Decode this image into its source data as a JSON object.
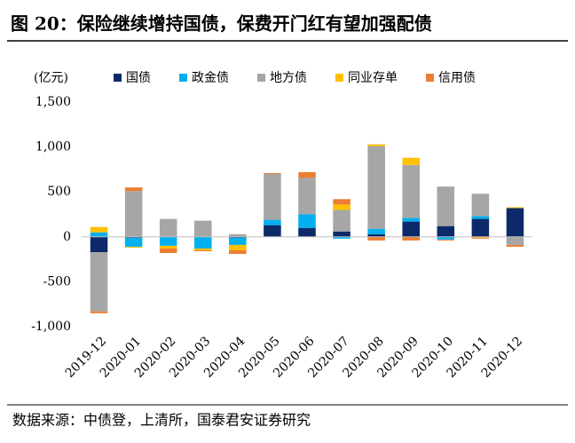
{
  "chart_data": {
    "type": "stacked_bar",
    "title": "图 20：保险继续增持国债，保费开门红有望加强配债",
    "y_axis_label": "(亿元)",
    "source": "数据来源：中债登，上清所，国泰君安证券研究",
    "categories": [
      "2019-12",
      "2020-01",
      "2020-02",
      "2020-03",
      "2020-04",
      "2020-05",
      "2020-06",
      "2020-07",
      "2020-08",
      "2020-09",
      "2020-10",
      "2020-11",
      "2020-12"
    ],
    "series": [
      {
        "name": "国债",
        "color": "#0c2a6a",
        "values": [
          -170,
          -10,
          0,
          0,
          -10,
          130,
          100,
          60,
          30,
          170,
          120,
          200,
          320
        ]
      },
      {
        "name": "政金债",
        "color": "#00b0f0",
        "values": [
          50,
          -100,
          -100,
          -130,
          -80,
          60,
          150,
          -20,
          60,
          40,
          -30,
          30,
          0
        ]
      },
      {
        "name": "地方债",
        "color": "#a6a6a6",
        "values": [
          -660,
          510,
          200,
          180,
          30,
          510,
          410,
          240,
          920,
          590,
          440,
          250,
          -90
        ]
      },
      {
        "name": "同业存单",
        "color": "#ffc000",
        "values": [
          60,
          -10,
          -30,
          -20,
          -60,
          0,
          0,
          60,
          20,
          80,
          0,
          -10,
          10
        ]
      },
      {
        "name": "信用债",
        "color": "#ed7d31",
        "values": [
          -20,
          40,
          -50,
          -10,
          -40,
          10,
          60,
          60,
          -40,
          -40,
          -10,
          -10,
          -20
        ]
      }
    ],
    "ylim": [
      -1000,
      1500
    ],
    "yticks": [
      {
        "value": -1000,
        "label": "-1,000"
      },
      -500,
      0,
      500,
      {
        "value": 1000,
        "label": "1,000"
      },
      {
        "value": 1500,
        "label": "1,500"
      }
    ]
  }
}
